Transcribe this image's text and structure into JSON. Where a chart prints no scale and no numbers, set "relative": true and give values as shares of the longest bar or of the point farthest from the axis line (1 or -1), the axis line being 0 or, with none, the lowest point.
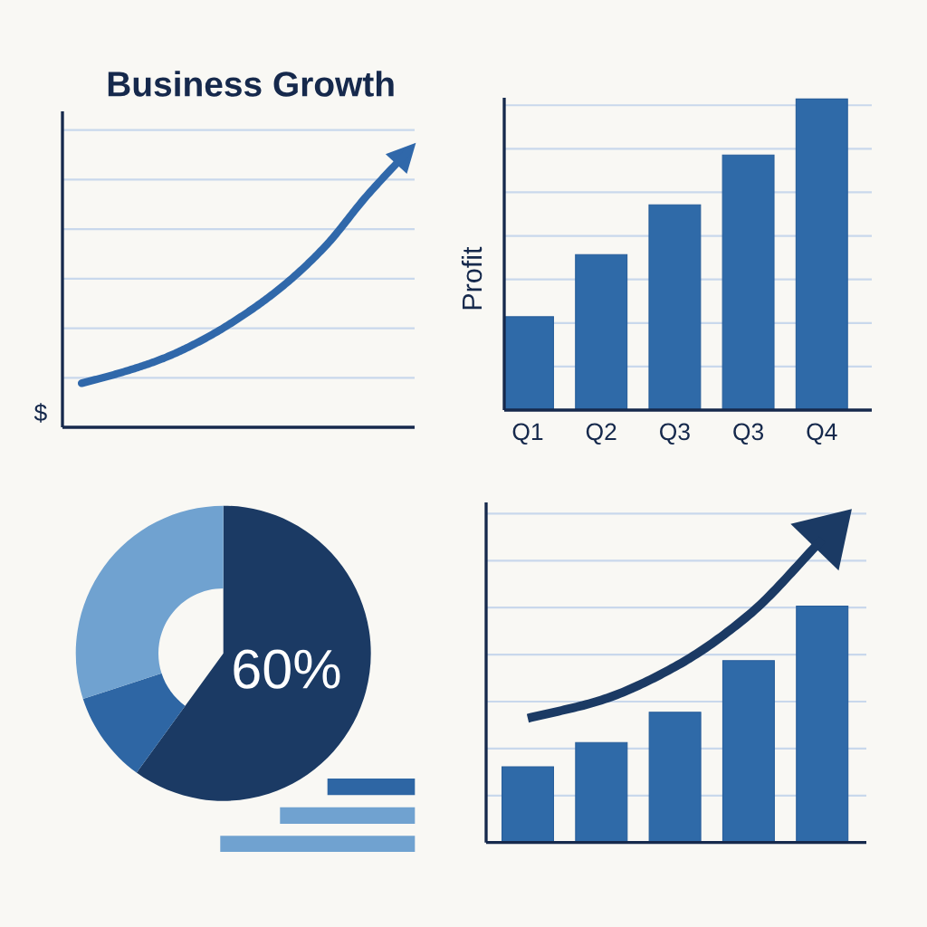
{
  "chart_data": [
    {
      "type": "line",
      "title": "Business Growth",
      "ylabel": "$",
      "categories": [
        null,
        null,
        null,
        null,
        null,
        null,
        null,
        null,
        null
      ],
      "values": [
        0.16,
        0.2,
        0.25,
        0.32,
        0.41,
        0.52,
        0.66,
        0.84,
        1.0
      ],
      "color": "#3068aa",
      "relative": true,
      "grid": "y",
      "tick_labels": false
    },
    {
      "type": "bar",
      "ylabel": "Profit",
      "categories": [
        "Q1",
        "Q2",
        "Q3",
        "Q3",
        "Q4"
      ],
      "values": [
        0.3,
        0.5,
        0.66,
        0.82,
        1.0
      ],
      "color": "#2f6aa8",
      "relative": true,
      "grid": "y",
      "tick_labels": "x"
    },
    {
      "type": "pie",
      "categories": [
        null,
        null,
        null
      ],
      "values": [
        60,
        10,
        30
      ],
      "colors": [
        "#1b3a64",
        "#2e66a4",
        "#70a2d0"
      ],
      "value_labels": [
        "60%",
        null,
        null
      ]
    },
    {
      "type": "bar",
      "categories": [
        null,
        null,
        null,
        null,
        null
      ],
      "series": [
        {
          "color": "#2f6aa8",
          "values": [
            0.25,
            0.33,
            0.43,
            0.6,
            0.78
          ]
        },
        {
          "type": "line",
          "color": "#1b3a64",
          "values": [
            0.41,
            0.47,
            0.58,
            0.75,
            1.0
          ]
        }
      ],
      "relative": true,
      "grid": "y",
      "tick_labels": false
    }
  ]
}
